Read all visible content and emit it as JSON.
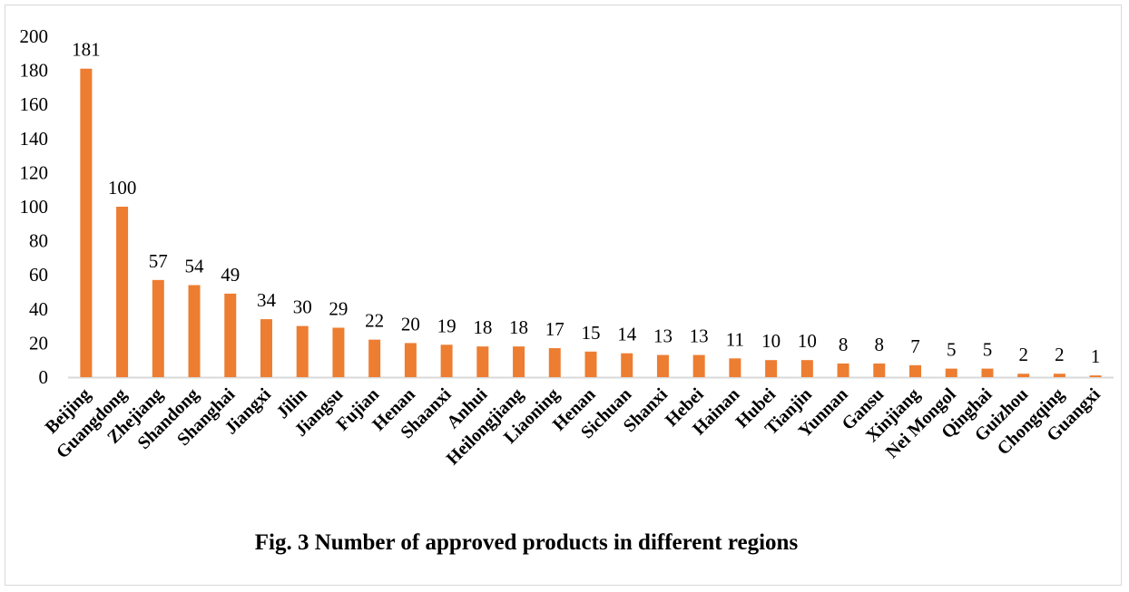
{
  "chart_data": {
    "type": "bar",
    "title": "Fig. 3 Number of approved products in different regions",
    "xlabel": "",
    "ylabel": "",
    "ylim": [
      0,
      200
    ],
    "yticks": [
      0,
      20,
      40,
      60,
      80,
      100,
      120,
      140,
      160,
      180,
      200
    ],
    "grid": false,
    "legend": "none",
    "data_labels": true,
    "bar_color": "#ed7d31",
    "categories": [
      "Beijing",
      "Guangdong",
      "Zhejiang",
      "Shandong",
      "Shanghai",
      "Jiangxi",
      "Jilin",
      "Jiangsu",
      "Fujian",
      "Henan",
      "Shaanxi",
      "Anhui",
      "Heilongjiang",
      "Liaoning",
      "Henan",
      "Sichuan",
      "Shanxi",
      "Hebei",
      "Hainan",
      "Hubei",
      "Tianjin",
      "Yunnan",
      "Gansu",
      "Xinjiang",
      "Nei Mongol",
      "Qinghai",
      "Guizhou",
      "Chongqing",
      "Guangxi"
    ],
    "values": [
      181,
      100,
      57,
      54,
      49,
      34,
      30,
      29,
      22,
      20,
      19,
      18,
      18,
      17,
      15,
      14,
      13,
      13,
      11,
      10,
      10,
      8,
      8,
      7,
      5,
      5,
      2,
      2,
      1
    ]
  }
}
